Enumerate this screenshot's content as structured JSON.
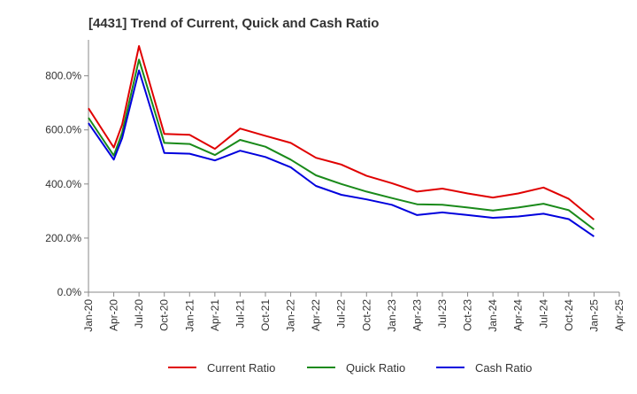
{
  "chart_data": {
    "type": "line",
    "title": "[4431]  Trend of Current, Quick and Cash Ratio",
    "xlabel": "",
    "ylabel": "",
    "ylim": [
      0,
      933
    ],
    "yticks": [
      0,
      200,
      400,
      600,
      800
    ],
    "ytick_labels": [
      "0.0%",
      "200.0%",
      "400.0%",
      "600.0%",
      "800.0%"
    ],
    "xtick_labels": [
      "Jan-20",
      "Apr-20",
      "Jul-20",
      "Oct-20",
      "Jan-21",
      "Apr-21",
      "Jul-21",
      "Oct-21",
      "Jan-22",
      "Apr-22",
      "Jul-22",
      "Oct-22",
      "Jan-23",
      "Apr-23",
      "Jul-23",
      "Oct-23",
      "Jan-24",
      "Apr-24",
      "Jul-24",
      "Oct-24",
      "Jan-25",
      "Apr-25"
    ],
    "x": [
      "Jan-20",
      "Apr-20",
      "May-20",
      "Jul-20",
      "Oct-20",
      "Jan-21",
      "Apr-21",
      "Jul-21",
      "Oct-21",
      "Jan-22",
      "Apr-22",
      "Jul-22",
      "Oct-22",
      "Jan-23",
      "Apr-23",
      "Jul-23",
      "Oct-23",
      "Jan-24",
      "Apr-24",
      "Jul-24",
      "Oct-24",
      "Jan-25"
    ],
    "series": [
      {
        "name": "Current Ratio",
        "color": "#e00000",
        "values": [
          680,
          535,
          620,
          910,
          585,
          582,
          530,
          605,
          578,
          552,
          497,
          472,
          430,
          403,
          372,
          383,
          365,
          350,
          365,
          387,
          345,
          268
        ]
      },
      {
        "name": "Quick Ratio",
        "color": "#1a8a1a",
        "values": [
          645,
          505,
          590,
          860,
          552,
          548,
          507,
          563,
          538,
          490,
          432,
          400,
          372,
          348,
          325,
          323,
          313,
          302,
          313,
          327,
          303,
          232
        ]
      },
      {
        "name": "Cash Ratio",
        "color": "#0000dd",
        "values": [
          625,
          490,
          570,
          820,
          515,
          512,
          487,
          523,
          500,
          462,
          393,
          360,
          343,
          323,
          285,
          295,
          285,
          275,
          280,
          290,
          270,
          206
        ]
      }
    ],
    "grid": false,
    "legend_position": "bottom"
  }
}
